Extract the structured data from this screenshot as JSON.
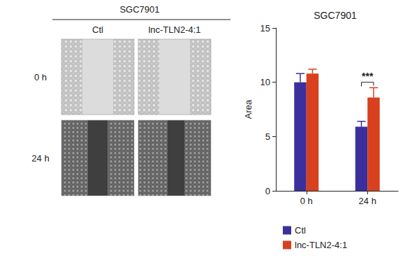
{
  "image_panel": {
    "title": "SGC7901",
    "columns": [
      "Ctl",
      "lnc-TLN2-4:1"
    ],
    "rows": [
      "0 h",
      "24 h"
    ]
  },
  "chart_data": {
    "type": "bar",
    "title": "SGC7901",
    "y_label": "Area",
    "categories": [
      "0 h",
      "24 h"
    ],
    "series": [
      {
        "name": "Ctl",
        "color": "#3b2f9c",
        "values": [
          10.0,
          5.9
        ],
        "errors": [
          0.8,
          0.5
        ]
      },
      {
        "name": "lnc-TLN2-4:1",
        "color": "#d8401e",
        "values": [
          10.8,
          8.6
        ],
        "errors": [
          0.4,
          0.9
        ]
      }
    ],
    "ylim": [
      0,
      15
    ],
    "yticks": [
      0,
      5,
      10,
      15
    ],
    "grid": false,
    "legend": "bottom-left",
    "annotations": [
      {
        "text": "***",
        "category": "24 h",
        "between": [
          "Ctl",
          "lnc-TLN2-4:1"
        ],
        "y": 10
      }
    ]
  }
}
